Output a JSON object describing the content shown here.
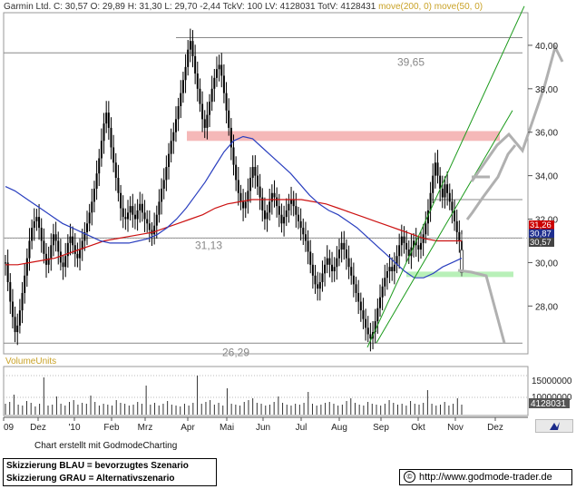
{
  "header": {
    "symbol_text": "Garmin Ltd. C: 30,57 O: 29,89 H: 31,30 L: 29,70 -2,44 TckV: 100 LV: 4128031 TotV: 4128431",
    "ma_text": "move(200, 0) move(50, 0)"
  },
  "footer": {
    "credit": "Chart erstellt mit GodmodeCharting",
    "legend_line1": "Skizzierung BLAU = bevorzugtes Szenario",
    "legend_line2": "Skizzierung GRAU = Alternativszenario",
    "copyright_symbol": "©",
    "url": "http://www.godmode-trader.de"
  },
  "logo_icon": "godmode-bull-logo-icon",
  "chart_data": {
    "type": "candlestick",
    "main_panel": {
      "y_ticks": [
        "40,00",
        "38,00",
        "36,00",
        "34,00",
        "32,00",
        "30,00",
        "28,00"
      ],
      "ylim": [
        25.8,
        41.5
      ],
      "x_ticks": [
        "09",
        "Dez",
        "'10",
        "Feb",
        "Mrz",
        "Apr",
        "Mai",
        "Jun",
        "Jul",
        "Aug",
        "Sep",
        "Okt",
        "Nov",
        "Dez"
      ],
      "price_path": [
        30.0,
        29.1,
        28.2,
        27.5,
        26.8,
        27.1,
        27.8,
        28.6,
        29.4,
        30.2,
        31.0,
        31.6,
        31.9,
        32.1,
        31.6,
        31.0,
        30.4,
        29.9,
        30.2,
        30.8,
        31.3,
        31.0,
        30.5,
        30.0,
        29.8,
        30.3,
        30.9,
        31.2,
        30.8,
        30.4,
        30.2,
        30.6,
        31.0,
        31.4,
        31.8,
        32.3,
        32.8,
        33.4,
        34.1,
        34.8,
        35.6,
        36.4,
        36.9,
        36.2,
        35.3,
        34.6,
        33.9,
        33.2,
        32.5,
        32.1,
        32.0,
        32.3,
        32.6,
        32.2,
        32.0,
        32.4,
        32.7,
        32.3,
        32.0,
        31.8,
        31.5,
        31.3,
        31.7,
        32.2,
        32.8,
        33.4,
        33.8,
        34.4,
        35.0,
        35.6,
        36.0,
        36.6,
        37.2,
        37.8,
        38.4,
        39.0,
        39.8,
        40.2,
        39.5,
        38.7,
        38.0,
        37.3,
        36.6,
        36.2,
        36.8,
        37.4,
        38.0,
        38.5,
        38.9,
        39.1,
        38.6,
        37.8,
        37.0,
        36.2,
        35.3,
        34.5,
        33.8,
        33.2,
        32.8,
        32.5,
        32.8,
        33.3,
        33.9,
        34.4,
        34.0,
        33.5,
        33.0,
        32.4,
        32.0,
        32.3,
        32.8,
        33.2,
        33.0,
        32.6,
        32.2,
        31.8,
        32.1,
        32.4,
        32.7,
        32.9,
        32.6,
        32.2,
        31.9,
        31.6,
        31.3,
        31.0,
        30.5,
        29.9,
        29.4,
        29.0,
        28.8,
        29.1,
        29.5,
        29.9,
        30.2,
        29.9,
        29.6,
        29.8,
        30.2,
        30.6,
        30.9,
        30.6,
        30.2,
        29.8,
        29.4,
        29.0,
        28.6,
        28.2,
        27.8,
        27.4,
        27.0,
        26.7,
        26.5,
        26.8,
        27.3,
        27.9,
        28.4,
        28.9,
        29.3,
        29.6,
        29.8,
        29.6,
        29.9,
        30.3,
        30.8,
        31.2,
        30.9,
        30.6,
        30.3,
        30.7,
        31.0,
        30.8,
        30.6,
        30.9,
        31.3,
        31.8,
        32.4,
        33.2,
        34.0,
        34.6,
        34.0,
        33.4,
        33.0,
        33.6,
        33.2,
        32.8,
        32.4,
        31.9,
        31.4,
        31.0,
        30.6
      ],
      "ma50": [
        33.5,
        33.3,
        33.0,
        32.7,
        32.4,
        32.1,
        31.8,
        31.6,
        31.4,
        31.2,
        31.0,
        30.9,
        30.9,
        30.9,
        31.0,
        31.1,
        31.3,
        31.6,
        32.0,
        32.5,
        33.1,
        33.7,
        34.4,
        35.1,
        35.6,
        35.8,
        35.7,
        35.3,
        34.9,
        34.5,
        34.1,
        33.6,
        33.1,
        32.7,
        32.4,
        32.2,
        31.9,
        31.6,
        31.2,
        30.8,
        30.4,
        30.0,
        29.6,
        29.3,
        29.3,
        29.5,
        29.8,
        30.0,
        30.2
      ],
      "ma200": [
        29.9,
        29.9,
        30.0,
        30.1,
        30.2,
        30.4,
        30.6,
        30.8,
        31.0,
        31.1,
        31.2,
        31.3,
        31.4,
        31.6,
        31.8,
        32.0,
        32.2,
        32.5,
        32.7,
        32.8,
        32.9,
        32.9,
        32.9,
        32.9,
        32.9,
        32.8,
        32.7,
        32.5,
        32.3,
        32.1,
        31.9,
        31.7,
        31.5,
        31.3,
        31.1,
        31.0,
        31.0,
        31.0
      ],
      "last_candle": {
        "open": 29.89,
        "high": 31.3,
        "low": 29.7,
        "close": 30.57
      },
      "price_labels": [
        {
          "text": "31,26",
          "value": 31.26,
          "color": "#cc0000"
        },
        {
          "text": "30,87",
          "value": 30.87,
          "color": "#1f2f8f"
        },
        {
          "text": "30,57",
          "value": 30.57,
          "color": "#444444"
        }
      ],
      "annotations": [
        {
          "text": "39,65",
          "value": 39.65
        },
        {
          "text": "31,13",
          "value": 31.13
        },
        {
          "text": "26,29",
          "value": 26.29
        }
      ],
      "horizontal_lines": [
        40.35,
        39.65,
        32.9,
        31.13,
        26.29
      ],
      "resistance_zone": [
        35.6,
        36.05
      ],
      "support_zone": [
        29.35,
        29.5
      ],
      "colors": {
        "candle": "#000000",
        "ma50": "#2a3fbf",
        "ma200": "#cc1111",
        "channel": "#1a9a1a",
        "resistance": "#f5b8b8",
        "support": "#b8f0b8",
        "scenario_gray": "#b0b0b0",
        "level_line": "#888888",
        "annotation_text": "#888888"
      }
    },
    "volume_panel": {
      "title": "VolumeUnits",
      "y_ticks": [
        "15000000",
        "10000000"
      ],
      "last_label": "4128031",
      "bars": [
        1.2,
        1.4,
        2.2,
        1.1,
        1.0,
        1.5,
        1.3,
        0.9,
        1.2,
        4.1,
        1.0,
        1.1,
        2.0,
        1.2,
        1.0,
        1.4,
        1.6,
        1.1,
        1.3,
        1.2,
        2.1,
        1.4,
        1.0,
        1.2,
        1.1,
        1.0,
        1.6,
        1.3,
        1.2,
        1.0,
        1.1,
        1.4,
        1.2,
        3.2,
        1.1,
        1.3,
        1.0,
        1.2,
        1.5,
        1.1,
        1.0,
        0.9,
        1.2,
        1.0,
        1.3,
        4.3,
        1.2,
        1.4,
        1.6,
        1.1,
        1.3,
        1.0,
        2.9,
        1.2,
        1.1,
        1.0,
        1.4,
        1.6,
        1.8,
        1.3,
        1.2,
        1.0,
        1.1,
        1.4,
        2.0,
        1.3,
        1.1,
        1.0,
        1.2,
        1.1,
        1.3,
        2.5,
        1.2,
        1.0,
        1.1,
        1.3,
        1.4,
        1.2,
        1.0,
        1.1,
        1.5,
        1.8,
        1.3,
        1.1,
        1.0,
        1.4,
        1.2,
        1.1,
        1.0,
        1.2,
        1.6,
        1.3,
        1.1,
        1.2,
        1.0,
        1.5,
        1.2,
        1.1,
        1.3,
        2.7,
        1.2,
        1.0,
        1.1,
        1.4,
        1.0,
        1.2,
        1.8,
        1.1
      ]
    }
  }
}
